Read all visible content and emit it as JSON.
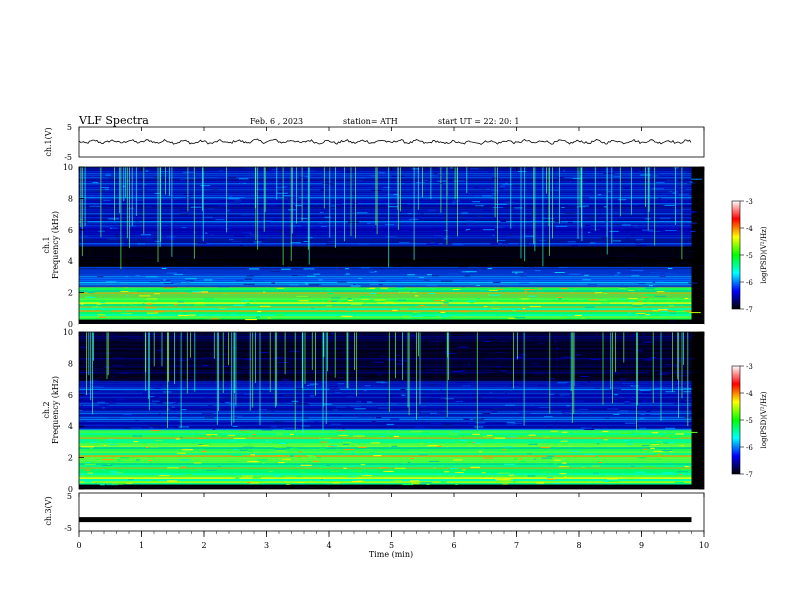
{
  "header": {
    "title": "VLF  Spectra",
    "date": "Feb. 6  , 2023",
    "station": "station= ATH",
    "start": "start  UT  =    22: 20: 1"
  },
  "colorbar": {
    "label": "log(PSD)(V²/Hz)",
    "ticks": [
      "-3",
      "-4",
      "-5",
      "-6",
      "-7"
    ],
    "colors": [
      "#ffffff",
      "#ff0000",
      "#ffff00",
      "#00ff00",
      "#00ffff",
      "#0000ff",
      "#000000"
    ]
  },
  "chart_data": [
    {
      "type": "line",
      "id": "ch1-timeseries",
      "ylabel": "ch.1(V)",
      "ylim": [
        -5,
        5
      ],
      "yticks": [
        "5",
        "-5"
      ],
      "x": [
        0,
        1,
        2,
        3,
        4,
        5,
        6,
        7,
        8,
        9,
        9.8
      ],
      "values": [
        0,
        0.2,
        -0.1,
        0.3,
        0,
        0.2,
        -0.2,
        0.1,
        0,
        0.2,
        0
      ]
    },
    {
      "type": "heatmap",
      "id": "ch1-spectrogram",
      "ylabel": "ch.1 Frequency  (kHz)",
      "ylim": [
        0,
        10
      ],
      "yticks": [
        "0",
        "2",
        "4",
        "6",
        "8",
        "10"
      ],
      "xlim": [
        0,
        9.8
      ],
      "bands": [
        {
          "from": 0,
          "to": 0.3,
          "level": "black"
        },
        {
          "from": 0.3,
          "to": 2.4,
          "level": "green-yellow"
        },
        {
          "from": 2.4,
          "to": 3.7,
          "level": "blue-cyan"
        },
        {
          "from": 3.7,
          "to": 5.0,
          "level": "black"
        },
        {
          "from": 5.0,
          "to": 10,
          "level": "blue"
        }
      ]
    },
    {
      "type": "heatmap",
      "id": "ch2-spectrogram",
      "ylabel": "ch.2 Frequency  (kHz)",
      "ylim": [
        0,
        10
      ],
      "yticks": [
        "0",
        "2",
        "4",
        "6",
        "8",
        "10"
      ],
      "xlim": [
        0,
        9.8
      ],
      "bands": [
        {
          "from": 0,
          "to": 0.3,
          "level": "black"
        },
        {
          "from": 0.3,
          "to": 3.8,
          "level": "green-yellow"
        },
        {
          "from": 3.8,
          "to": 6.9,
          "level": "blue"
        },
        {
          "from": 6.9,
          "to": 10,
          "level": "black-blue"
        }
      ]
    },
    {
      "type": "line",
      "id": "ch3-timeseries",
      "ylabel": "ch.3(V)",
      "xlabel": "Time  (min)",
      "ylim": [
        -5,
        5
      ],
      "yticks": [
        "5",
        "-5"
      ],
      "xlim": [
        0,
        10
      ],
      "xticks": [
        "0",
        "1",
        "2",
        "3",
        "4",
        "5",
        "6",
        "7",
        "8",
        "9",
        "10"
      ],
      "x": [
        0,
        9.8
      ],
      "values": [
        -2,
        -2
      ]
    }
  ]
}
